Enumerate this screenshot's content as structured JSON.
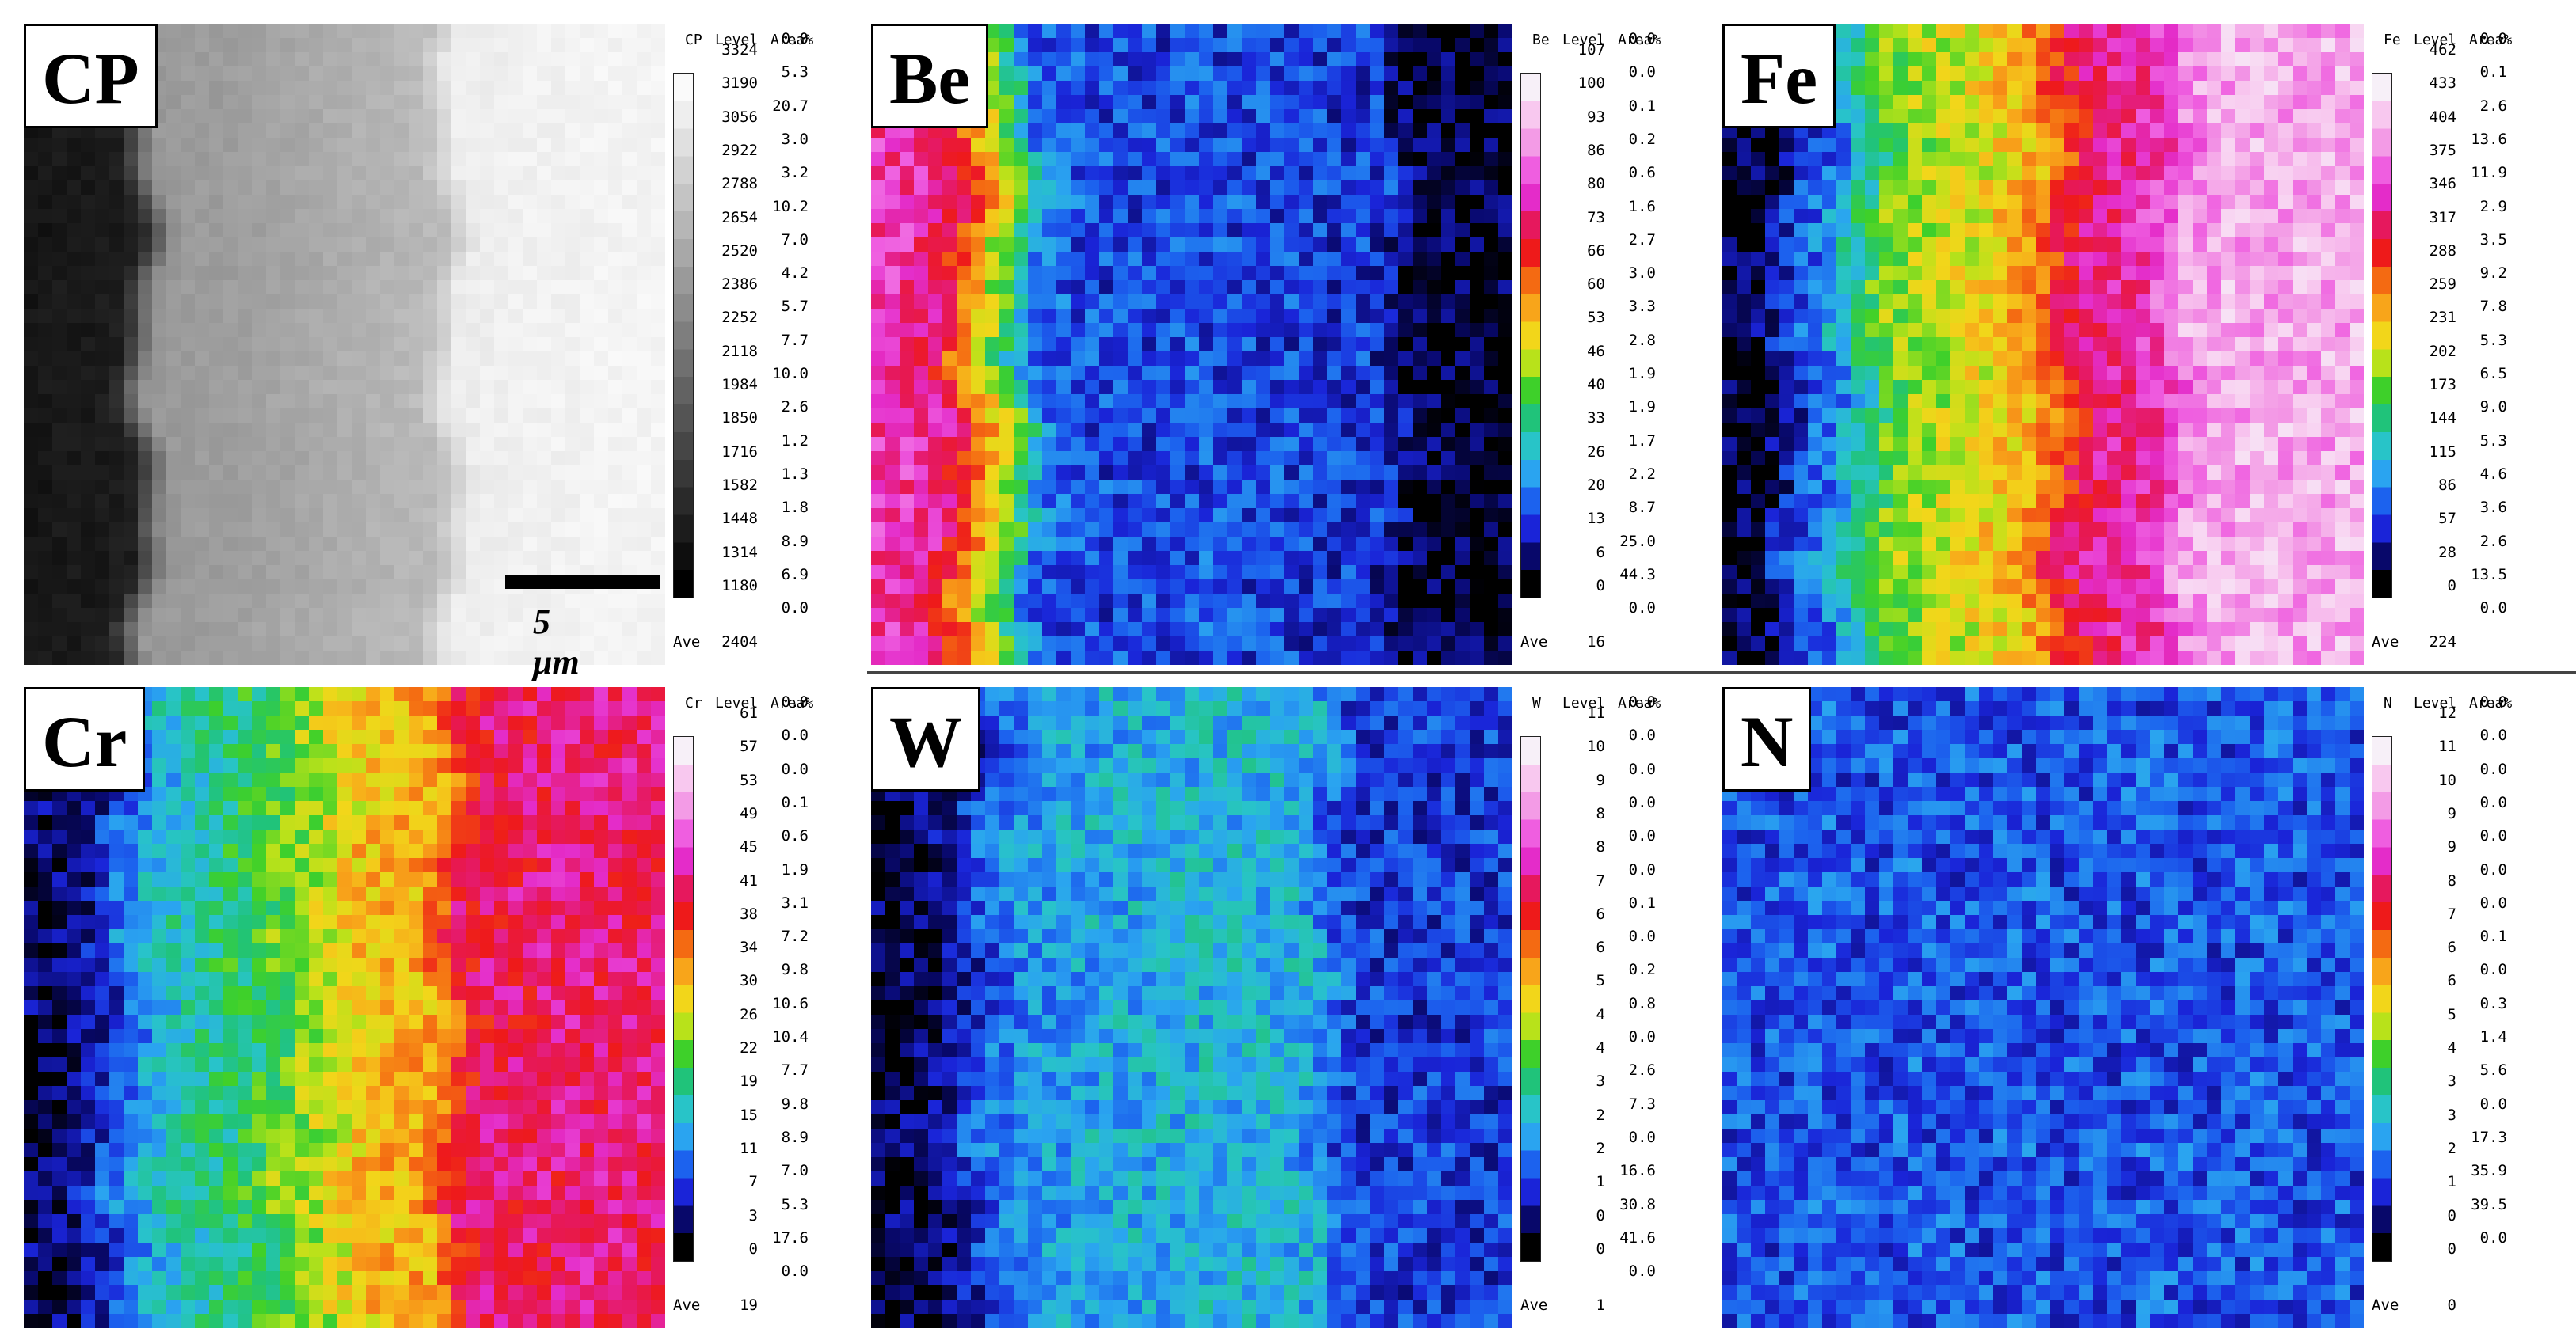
{
  "panels": [
    {
      "id": "cp",
      "label": "CP",
      "symbol": "CP",
      "ave": "2404",
      "colormap": "gray",
      "levels": [
        "3324",
        "3190",
        "3056",
        "2922",
        "2788",
        "2654",
        "2520",
        "2386",
        "2252",
        "2118",
        "1984",
        "1850",
        "1716",
        "1582",
        "1448",
        "1314",
        "1180"
      ],
      "areas": [
        "0.0",
        "5.3",
        "20.7",
        "3.0",
        "3.2",
        "10.2",
        "7.0",
        "4.2",
        "5.7",
        "7.7",
        "10.0",
        "2.6",
        "1.2",
        "1.3",
        "1.8",
        "8.9",
        "6.9",
        "0.0"
      ],
      "profile": [
        0.08,
        0.1,
        0.1,
        0.12,
        0.6,
        0.62,
        0.62,
        0.64,
        0.66,
        0.68,
        0.7,
        0.72,
        0.74,
        0.94,
        0.95,
        0.96,
        0.96,
        0.97,
        0.97,
        0.97
      ],
      "scale_bar": "5 μm"
    },
    {
      "id": "be",
      "label": "Be",
      "symbol": "Be",
      "ave": "16",
      "colormap": "rainbow",
      "levels": [
        "107",
        "100",
        "93",
        "86",
        "80",
        "73",
        "66",
        "60",
        "53",
        "46",
        "40",
        "33",
        "26",
        "20",
        "13",
        "6",
        "0"
      ],
      "areas": [
        "0.0",
        "0.0",
        "0.1",
        "0.2",
        "0.6",
        "1.6",
        "2.7",
        "3.0",
        "3.3",
        "2.8",
        "1.9",
        "1.9",
        "1.7",
        "2.2",
        "8.7",
        "25.0",
        "44.3",
        "0.0"
      ],
      "profile": [
        0.78,
        0.78,
        0.74,
        0.58,
        0.4,
        0.18,
        0.15,
        0.14,
        0.14,
        0.14,
        0.15,
        0.14,
        0.14,
        0.13,
        0.13,
        0.13,
        0.03,
        0.02,
        0.02,
        0.02
      ]
    },
    {
      "id": "fe",
      "label": "Fe",
      "symbol": "Fe",
      "ave": "224",
      "colormap": "rainbow",
      "levels": [
        "462",
        "433",
        "404",
        "375",
        "346",
        "317",
        "288",
        "259",
        "231",
        "202",
        "173",
        "144",
        "115",
        "86",
        "57",
        "28",
        "0"
      ],
      "areas": [
        "0.0",
        "0.1",
        "2.6",
        "13.6",
        "11.9",
        "2.9",
        "3.5",
        "9.2",
        "7.8",
        "5.3",
        "6.5",
        "9.0",
        "5.3",
        "4.6",
        "3.6",
        "2.6",
        "13.5",
        "0.0"
      ],
      "profile": [
        0.02,
        0.02,
        0.12,
        0.18,
        0.3,
        0.42,
        0.44,
        0.47,
        0.5,
        0.54,
        0.66,
        0.74,
        0.76,
        0.8,
        0.9,
        0.91,
        0.91,
        0.91,
        0.91,
        0.91
      ]
    },
    {
      "id": "cr",
      "label": "Cr",
      "symbol": "Cr",
      "ave": "19",
      "colormap": "rainbow",
      "levels": [
        "61",
        "57",
        "53",
        "49",
        "45",
        "41",
        "38",
        "34",
        "30",
        "26",
        "22",
        "19",
        "15",
        "11",
        "7",
        "3",
        "0"
      ],
      "areas": [
        "0.0",
        "0.0",
        "0.0",
        "0.1",
        "0.6",
        "1.9",
        "3.1",
        "7.2",
        "9.8",
        "10.6",
        "10.4",
        "7.7",
        "9.8",
        "8.9",
        "7.0",
        "5.3",
        "17.6",
        "0.0"
      ],
      "profile": [
        0.04,
        0.04,
        0.08,
        0.18,
        0.26,
        0.3,
        0.33,
        0.36,
        0.42,
        0.46,
        0.52,
        0.54,
        0.55,
        0.7,
        0.72,
        0.72,
        0.73,
        0.73,
        0.73,
        0.73
      ]
    },
    {
      "id": "w",
      "label": "W",
      "symbol": "W",
      "ave": "1",
      "colormap": "rainbow",
      "levels": [
        "11",
        "10",
        "9",
        "8",
        "8",
        "7",
        "6",
        "6",
        "5",
        "4",
        "4",
        "3",
        "2",
        "2",
        "1",
        "0",
        "0"
      ],
      "areas": [
        "0.0",
        "0.0",
        "0.0",
        "0.0",
        "0.0",
        "0.0",
        "0.1",
        "0.0",
        "0.2",
        "0.8",
        "0.0",
        "2.6",
        "7.3",
        "0.0",
        "16.6",
        "30.8",
        "41.6",
        "0.0"
      ],
      "profile": [
        0.03,
        0.03,
        0.05,
        0.13,
        0.2,
        0.22,
        0.23,
        0.24,
        0.24,
        0.25,
        0.25,
        0.25,
        0.25,
        0.24,
        0.14,
        0.13,
        0.13,
        0.13,
        0.13,
        0.13
      ]
    },
    {
      "id": "n",
      "label": "N",
      "symbol": "N",
      "ave": "0",
      "colormap": "rainbow",
      "levels": [
        "12",
        "11",
        "10",
        "9",
        "9",
        "8",
        "7",
        "6",
        "6",
        "5",
        "4",
        "3",
        "3",
        "2",
        "1",
        "0",
        "0"
      ],
      "areas": [
        "0.0",
        "0.0",
        "0.0",
        "0.0",
        "0.0",
        "0.0",
        "0.0",
        "0.1",
        "0.0",
        "0.3",
        "1.4",
        "5.6",
        "0.0",
        "17.3",
        "35.9",
        "39.5",
        "0.0"
      ],
      "profile": [
        0.15,
        0.15,
        0.15,
        0.16,
        0.15,
        0.15,
        0.16,
        0.15,
        0.15,
        0.16,
        0.15,
        0.15,
        0.15,
        0.16,
        0.15,
        0.15,
        0.16,
        0.15,
        0.15,
        0.15
      ]
    }
  ],
  "legend_headers": {
    "level": "Level",
    "area": "Area%",
    "ave": "Ave"
  }
}
